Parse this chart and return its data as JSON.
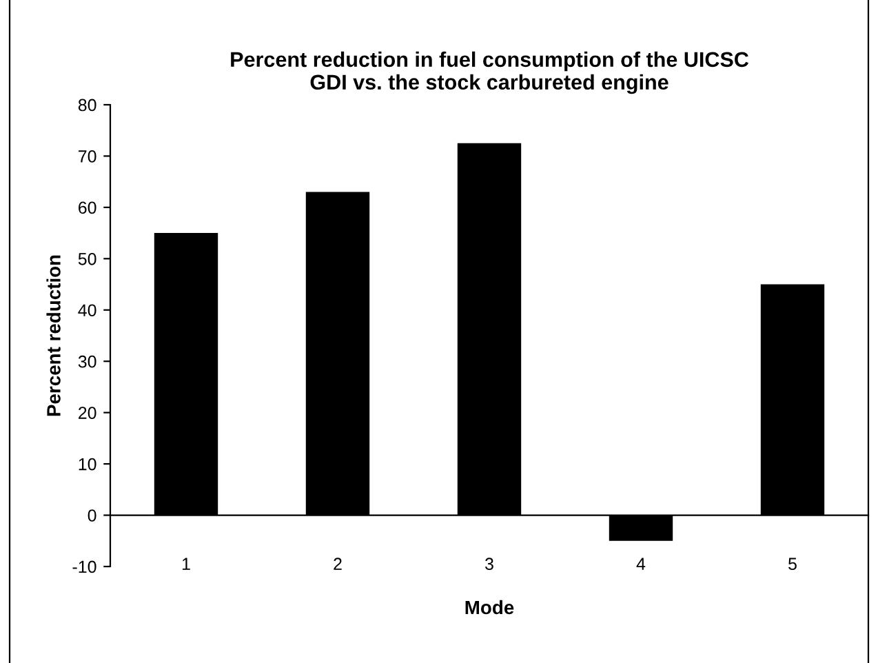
{
  "chart_data": {
    "type": "bar",
    "title": "Percent reduction in fuel consumption of the UICSC\nGDI vs. the stock carbureted engine",
    "xlabel": "Mode",
    "ylabel": "Percent reduction",
    "categories": [
      "1",
      "2",
      "3",
      "4",
      "5"
    ],
    "values": [
      55,
      63,
      72.5,
      -5,
      45
    ],
    "color": "#000000",
    "ylim": [
      -10,
      80
    ],
    "yticks": [
      -10,
      0,
      10,
      20,
      30,
      40,
      50,
      60,
      70,
      80
    ],
    "grid": false,
    "legend": false
  }
}
